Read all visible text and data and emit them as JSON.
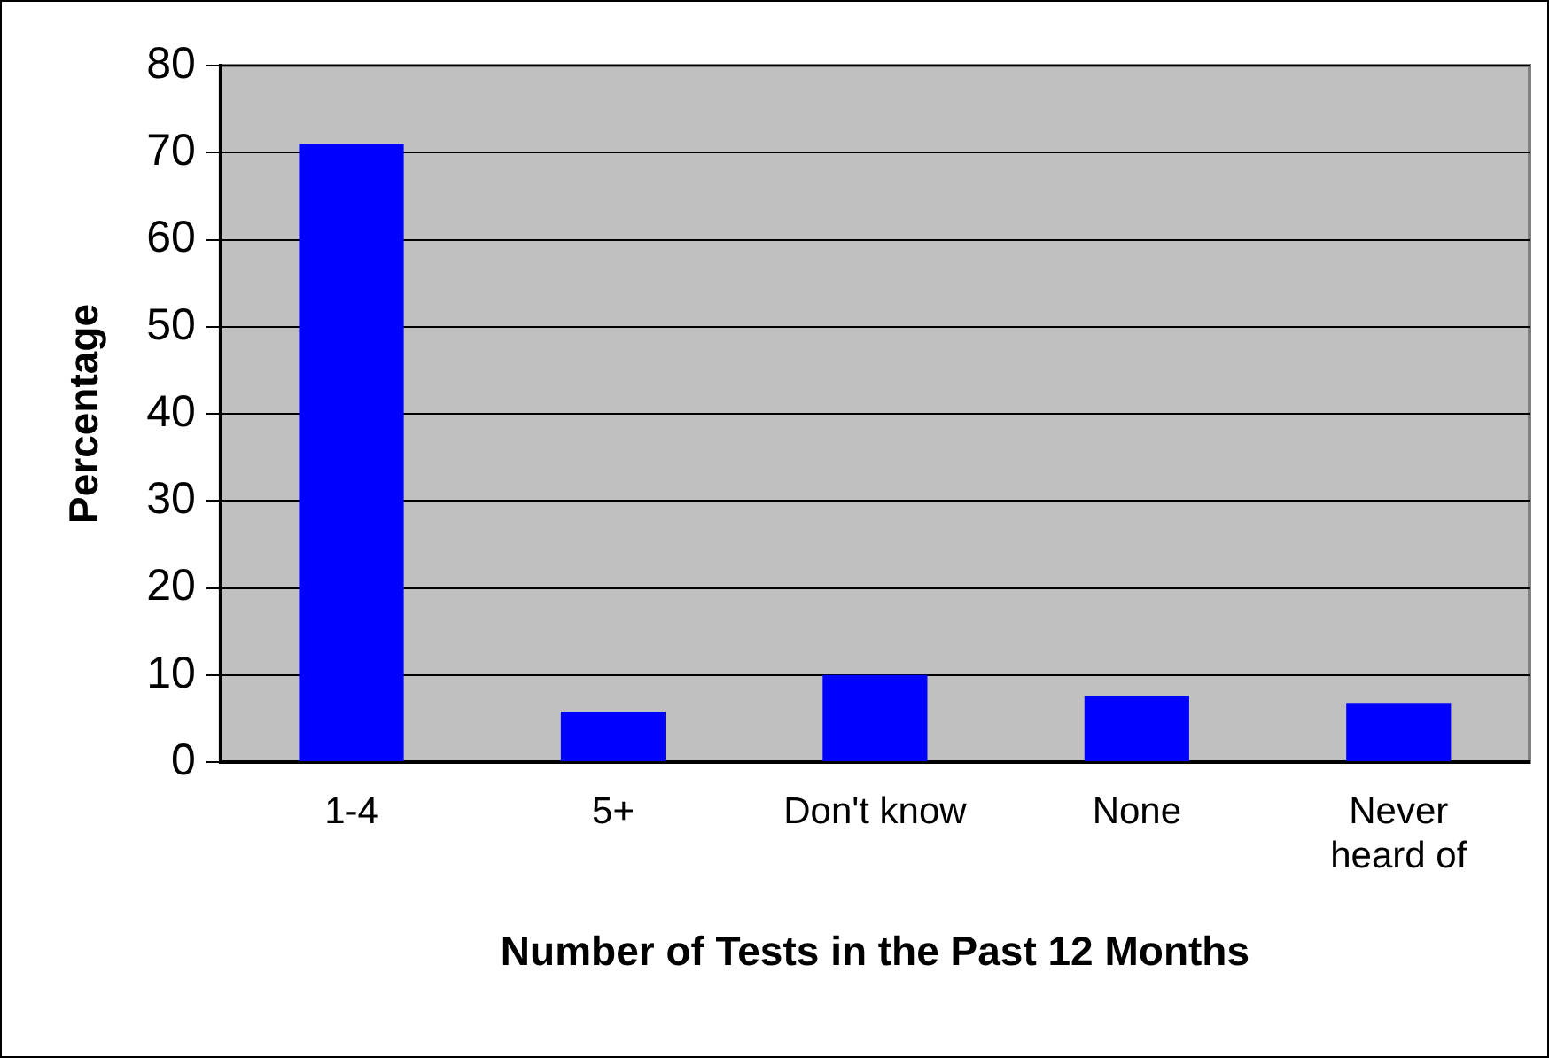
{
  "chart_data": {
    "type": "bar",
    "xlabel": "Number of Tests in the Past 12 Months",
    "ylabel": "Percentage",
    "categories": [
      "1-4",
      "5+",
      "Don't know",
      "None",
      "Never heard of"
    ],
    "values": [
      71,
      5.8,
      10,
      7.6,
      6.8
    ],
    "color": "#0000ff",
    "ylim": [
      0,
      80
    ],
    "yticks": [
      0,
      10,
      20,
      30,
      40,
      50,
      60,
      70,
      80
    ],
    "grid": "y",
    "legend": false
  }
}
